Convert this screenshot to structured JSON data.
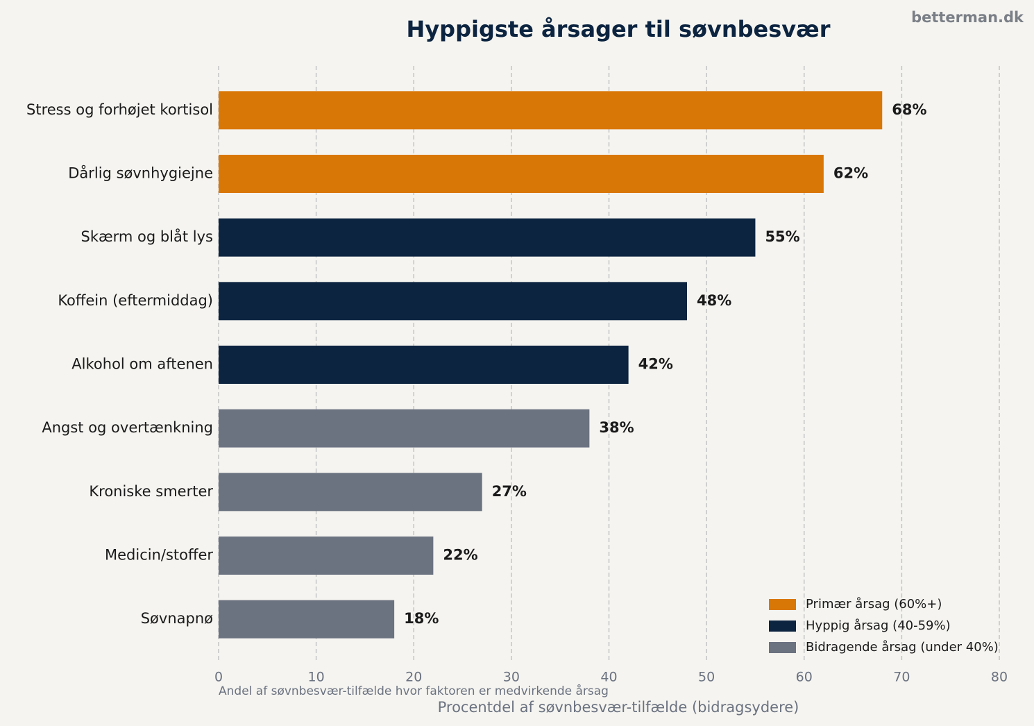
{
  "chart_data": {
    "type": "barh",
    "title": "Hyppigste årsager til søvnbesvær",
    "watermark": "betterman.dk",
    "xlabel": "Procentdel af søvnbesvær-tilfælde (bidragsydere)",
    "note": "Andel af søvnbesvær-tilfælde hvor faktoren er medvirkende årsag",
    "categories": [
      "Stress og forhøjet kortisol",
      "Dårlig søvnhygiejne",
      "Skærm og blåt lys",
      "Koffein (eftermiddag)",
      "Alkohol om aftenen",
      "Angst og overtænkning",
      "Kroniske smerter",
      "Medicin/stoffer",
      "Søvnapnø"
    ],
    "series": [
      {
        "name": "Primær årsag (60%+)",
        "color": "#d97706",
        "values": [
          68,
          62,
          null,
          null,
          null,
          null,
          null,
          null,
          null
        ],
        "value_labels": [
          "68%",
          "62%",
          null,
          null,
          null,
          null,
          null,
          null,
          null
        ]
      },
      {
        "name": "Hyppig årsag (40-59%)",
        "color": "#0c2440",
        "values": [
          null,
          null,
          55,
          48,
          42,
          null,
          null,
          null,
          null
        ],
        "value_labels": [
          null,
          null,
          "55%",
          "48%",
          "42%",
          null,
          null,
          null,
          null
        ]
      },
      {
        "name": "Bidragende årsag (under 40%)",
        "color": "#6b7280",
        "values": [
          null,
          null,
          null,
          null,
          null,
          38,
          27,
          22,
          18
        ],
        "value_labels": [
          null,
          null,
          null,
          null,
          null,
          "38%",
          "27%",
          "22%",
          "18%"
        ]
      }
    ],
    "xlim": [
      0,
      80
    ],
    "xticks": [
      0,
      10,
      20,
      30,
      40,
      50,
      60,
      70,
      80
    ],
    "grid": true,
    "legend": "lower right"
  }
}
